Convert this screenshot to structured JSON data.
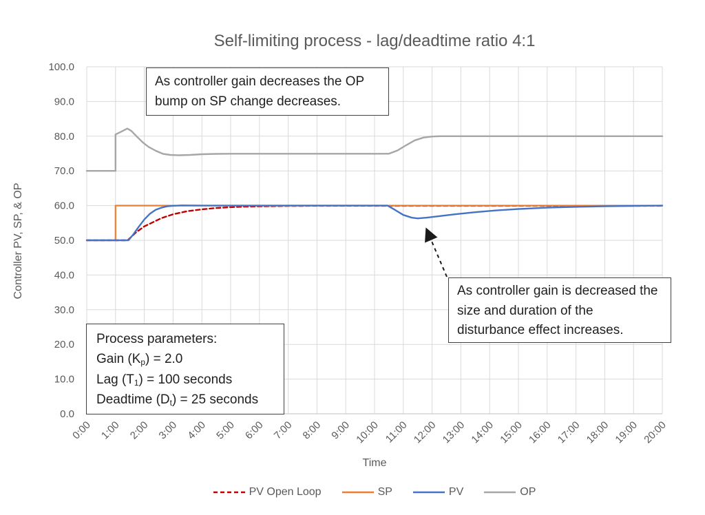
{
  "chart_data": {
    "type": "line",
    "title": "Self-limiting process - lag/deadtime ratio 4:1",
    "xlabel": "Time",
    "ylabel": "Controller PV, SP, & OP",
    "xlim": [
      0,
      20
    ],
    "ylim": [
      0,
      100
    ],
    "grid": true,
    "legend_position": "bottom",
    "x_tick_labels": [
      "0:00",
      "1:00",
      "2:00",
      "3:00",
      "4:00",
      "5:00",
      "6:00",
      "7:00",
      "8:00",
      "9:00",
      "10:00",
      "11:00",
      "12:00",
      "13:00",
      "14:00",
      "15:00",
      "16:00",
      "17:00",
      "18:00",
      "19:00",
      "20:00"
    ],
    "y_tick_labels": [
      "0.0",
      "10.0",
      "20.0",
      "30.0",
      "40.0",
      "50.0",
      "60.0",
      "70.0",
      "80.0",
      "90.0",
      "100.0"
    ],
    "grid_color": "#d9d9d9",
    "axis_line_color": "#bfbfbf",
    "tick_label_color": "#595959",
    "series": [
      {
        "name": "PV Open Loop",
        "color": "#C00000",
        "dash": "6 4",
        "width": 2.4,
        "points": [
          [
            0,
            50
          ],
          [
            1.42,
            50
          ],
          [
            1.7,
            52.2
          ],
          [
            2,
            54
          ],
          [
            2.3,
            55.2
          ],
          [
            2.6,
            56.4
          ],
          [
            3,
            57.5
          ],
          [
            3.5,
            58.4
          ],
          [
            4,
            58.9
          ],
          [
            4.5,
            59.3
          ],
          [
            5,
            59.55
          ],
          [
            5.5,
            59.7
          ],
          [
            6,
            59.8
          ],
          [
            7,
            59.9
          ],
          [
            8,
            59.95
          ],
          [
            20,
            59.95
          ]
        ]
      },
      {
        "name": "SP",
        "color": "#ED7D31",
        "dash": null,
        "width": 2.2,
        "points": [
          [
            0,
            50
          ],
          [
            1,
            50
          ],
          [
            1,
            60
          ],
          [
            20,
            60
          ]
        ]
      },
      {
        "name": "PV",
        "color": "#4472C4",
        "dash": null,
        "width": 2.4,
        "points": [
          [
            0,
            50
          ],
          [
            1.45,
            50
          ],
          [
            1.6,
            51.5
          ],
          [
            1.8,
            53.8
          ],
          [
            2,
            56
          ],
          [
            2.2,
            57.7
          ],
          [
            2.4,
            58.8
          ],
          [
            2.6,
            59.4
          ],
          [
            2.8,
            59.8
          ],
          [
            3,
            59.95
          ],
          [
            3.3,
            60.05
          ],
          [
            4,
            60
          ],
          [
            10.45,
            60
          ],
          [
            10.7,
            58.8
          ],
          [
            11,
            57.3
          ],
          [
            11.3,
            56.5
          ],
          [
            11.5,
            56.3
          ],
          [
            11.8,
            56.5
          ],
          [
            12.2,
            56.9
          ],
          [
            12.8,
            57.5
          ],
          [
            13.5,
            58.1
          ],
          [
            14.2,
            58.6
          ],
          [
            15,
            59
          ],
          [
            16,
            59.4
          ],
          [
            17,
            59.65
          ],
          [
            18,
            59.8
          ],
          [
            19,
            59.9
          ],
          [
            20,
            60
          ]
        ]
      },
      {
        "name": "OP",
        "color": "#A6A6A6",
        "dash": null,
        "width": 2.4,
        "points": [
          [
            0,
            70
          ],
          [
            1,
            70
          ],
          [
            1,
            80.5
          ],
          [
            1.2,
            81.3
          ],
          [
            1.41,
            82.2
          ],
          [
            1.55,
            81.5
          ],
          [
            1.75,
            79.8
          ],
          [
            1.95,
            78.2
          ],
          [
            2.15,
            76.9
          ],
          [
            2.4,
            75.8
          ],
          [
            2.65,
            74.9
          ],
          [
            2.9,
            74.6
          ],
          [
            3.2,
            74.5
          ],
          [
            3.6,
            74.6
          ],
          [
            4,
            74.8
          ],
          [
            4.5,
            74.9
          ],
          [
            5,
            74.95
          ],
          [
            10.5,
            74.95
          ],
          [
            10.8,
            75.9
          ],
          [
            11.1,
            77.4
          ],
          [
            11.4,
            78.8
          ],
          [
            11.7,
            79.6
          ],
          [
            12,
            79.9
          ],
          [
            12.3,
            80
          ],
          [
            20,
            80
          ]
        ]
      }
    ]
  },
  "annotations": {
    "op_bump": "As controller gain decreases the OP bump on SP change decreases.",
    "disturbance": "As controller gain is decreased the size and duration of the disturbance effect increases.",
    "arrow_color": "#1a1a1a"
  },
  "params": {
    "lines": [
      {
        "pre": "Process parameters:",
        "sub": "",
        "post": ""
      },
      {
        "pre": "Gain (K",
        "sub": "p",
        "post": ") = 2.0"
      },
      {
        "pre": "Lag (T",
        "sub": "1",
        "post": ") = 100 seconds"
      },
      {
        "pre": "Deadtime (D",
        "sub": "t",
        "post": ") = 25 seconds"
      }
    ]
  }
}
